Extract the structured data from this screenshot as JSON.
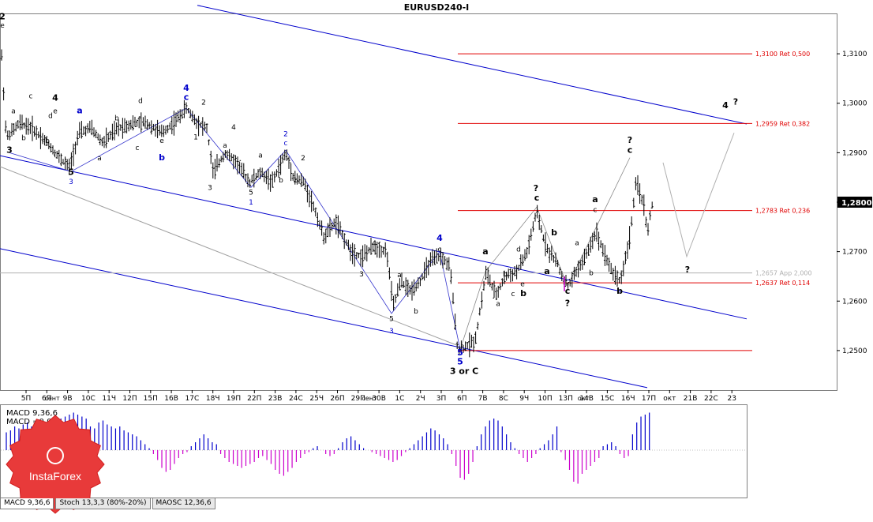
{
  "chart_data": {
    "type": "candlestick",
    "title": "EURUSD240-I",
    "instrument": "EURUSD",
    "ylim": [
      1.242,
      1.318
    ],
    "y_ticks": [
      "1,3100",
      "1,3000",
      "1,2900",
      "1,2800",
      "1,2700",
      "1,2600",
      "1,2500"
    ],
    "y_tick_values": [
      1.31,
      1.3,
      1.29,
      1.28,
      1.27,
      1.26,
      1.25
    ],
    "current_price_label": "1,2800",
    "current_price": 1.28,
    "x_ticks": [
      "5П",
      "6П",
      "9В",
      "10С",
      "11Ч",
      "12П",
      "15П",
      "16В",
      "17С",
      "18Ч",
      "19П",
      "22П",
      "23В",
      "24С",
      "25Ч",
      "26П",
      "29П",
      "30В",
      "1С",
      "2Ч",
      "3П",
      "6П",
      "7В",
      "8С",
      "9Ч",
      "10П",
      "13П",
      "14В",
      "15С",
      "16Ч",
      "17П",
      "окт",
      "21В",
      "22С",
      "23"
    ],
    "x_ticks_minor": [
      "сент",
      "окт",
      "окт"
    ],
    "price_path": [
      [
        0,
        1.315
      ],
      [
        8,
        1.293
      ],
      [
        25,
        1.296
      ],
      [
        40,
        1.295
      ],
      [
        60,
        1.292
      ],
      [
        75,
        1.289
      ],
      [
        88,
        1.287
      ],
      [
        100,
        1.294
      ],
      [
        115,
        1.295
      ],
      [
        130,
        1.292
      ],
      [
        150,
        1.295
      ],
      [
        170,
        1.296
      ],
      [
        185,
        1.296
      ],
      [
        205,
        1.294
      ],
      [
        220,
        1.296
      ],
      [
        236,
        1.299
      ],
      [
        250,
        1.296
      ],
      [
        262,
        1.295
      ],
      [
        270,
        1.286
      ],
      [
        285,
        1.29
      ],
      [
        300,
        1.288
      ],
      [
        316,
        1.284
      ],
      [
        330,
        1.286
      ],
      [
        345,
        1.284
      ],
      [
        362,
        1.29
      ],
      [
        372,
        1.285
      ],
      [
        385,
        1.284
      ],
      [
        400,
        1.278
      ],
      [
        410,
        1.273
      ],
      [
        425,
        1.276
      ],
      [
        445,
        1.27
      ],
      [
        458,
        1.269
      ],
      [
        474,
        1.271
      ],
      [
        490,
        1.27
      ],
      [
        498,
        1.259
      ],
      [
        508,
        1.264
      ],
      [
        520,
        1.262
      ],
      [
        532,
        1.264
      ],
      [
        545,
        1.268
      ],
      [
        558,
        1.269
      ],
      [
        570,
        1.267
      ],
      [
        580,
        1.25
      ],
      [
        592,
        1.251
      ],
      [
        602,
        1.252
      ],
      [
        616,
        1.266
      ],
      [
        628,
        1.261
      ],
      [
        640,
        1.265
      ],
      [
        655,
        1.266
      ],
      [
        668,
        1.27
      ],
      [
        680,
        1.278
      ],
      [
        688,
        1.273
      ],
      [
        695,
        1.27
      ],
      [
        705,
        1.268
      ],
      [
        712,
        1.265
      ],
      [
        720,
        1.263
      ],
      [
        730,
        1.266
      ],
      [
        742,
        1.269
      ],
      [
        755,
        1.274
      ],
      [
        765,
        1.27
      ],
      [
        775,
        1.266
      ],
      [
        786,
        1.264
      ],
      [
        797,
        1.272
      ],
      [
        806,
        1.284
      ],
      [
        815,
        1.28
      ],
      [
        820,
        1.274
      ],
      [
        827,
        1.28
      ]
    ],
    "channel_lines": [
      {
        "name": "upper-channel",
        "points": [
          [
            1.3198,
            250
          ],
          [
            1.2958,
            946
          ]
        ],
        "color": "#0000cc"
      },
      {
        "name": "mid-channel",
        "points": [
          [
            1.2894,
            0
          ],
          [
            1.2564,
            946
          ]
        ],
        "color": "#0000cc"
      },
      {
        "name": "lower-channel",
        "points": [
          [
            1.2706,
            0
          ],
          [
            1.2425,
            820
          ]
        ],
        "color": "#0000cc"
      },
      {
        "name": "gray-trend",
        "points": [
          [
            1.2872,
            0
          ],
          [
            1.251,
            580
          ]
        ],
        "color": "#a0a0a0"
      }
    ],
    "fib_levels": [
      {
        "value": 1.31,
        "label": "1,3100 Ret 0,500",
        "color": "#e00000",
        "x_start": 580
      },
      {
        "value": 1.2959,
        "label": "1,2959 Ret 0,382",
        "color": "#e00000",
        "x_start": 580
      },
      {
        "value": 1.2783,
        "label": "1,2783 Ret 0,236",
        "color": "#e00000",
        "x_start": 580
      },
      {
        "value": 1.2657,
        "label": "1,2657 App 2,000",
        "color": "#b0b0b0",
        "x_start": 0
      },
      {
        "value": 1.2637,
        "label": "1,2637 Ret 0,114",
        "color": "#e00000",
        "x_start": 580
      },
      {
        "value": 1.25,
        "label": "",
        "color": "#e00000",
        "x_start": 580
      }
    ],
    "forecast_path": [
      [
        840,
        1.288
      ],
      [
        870,
        1.269
      ],
      [
        930,
        1.294
      ]
    ],
    "wave_labels": [
      {
        "t": "2",
        "x": 3,
        "p": 1.317,
        "c": "#000",
        "b": true
      },
      {
        "t": "e",
        "x": 3,
        "p": 1.3153,
        "c": "#000"
      },
      {
        "t": "a",
        "x": 17,
        "p": 1.298,
        "c": "#000"
      },
      {
        "t": "c",
        "x": 39,
        "p": 1.301,
        "c": "#000"
      },
      {
        "t": "4",
        "x": 70,
        "p": 1.3005,
        "c": "#000",
        "b": true
      },
      {
        "t": "e",
        "x": 70,
        "p": 1.298,
        "c": "#000"
      },
      {
        "t": "d",
        "x": 64,
        "p": 1.297,
        "c": "#000"
      },
      {
        "t": "b",
        "x": 30,
        "p": 1.2925,
        "c": "#000"
      },
      {
        "t": "b",
        "x": 60,
        "p": 1.292,
        "c": "#000"
      },
      {
        "t": "3",
        "x": 12,
        "p": 1.29,
        "c": "#000",
        "b": true
      },
      {
        "t": "5",
        "x": 90,
        "p": 1.2855,
        "c": "#000",
        "b": true
      },
      {
        "t": "3",
        "x": 90,
        "p": 1.2837,
        "c": "#0000cc"
      },
      {
        "t": "a",
        "x": 101,
        "p": 1.298,
        "c": "#0000cc",
        "b": true
      },
      {
        "t": "b",
        "x": 148,
        "p": 1.2965,
        "c": "#000"
      },
      {
        "t": "a",
        "x": 126,
        "p": 1.2885,
        "c": "#000"
      },
      {
        "t": "c",
        "x": 174,
        "p": 1.2905,
        "c": "#000"
      },
      {
        "t": "d",
        "x": 178,
        "p": 1.3,
        "c": "#000"
      },
      {
        "t": "e",
        "x": 205,
        "p": 1.292,
        "c": "#000"
      },
      {
        "t": "b",
        "x": 205,
        "p": 1.2885,
        "c": "#0000cc",
        "b": true
      },
      {
        "t": "4",
        "x": 236,
        "p": 1.3025,
        "c": "#0000cc",
        "b": true
      },
      {
        "t": "c",
        "x": 236,
        "p": 1.3007,
        "c": "#0000cc",
        "b": true
      },
      {
        "t": "2",
        "x": 258,
        "p": 1.2997,
        "c": "#000"
      },
      {
        "t": "1",
        "x": 248,
        "p": 1.2927,
        "c": "#000"
      },
      {
        "t": "3",
        "x": 266,
        "p": 1.2825,
        "c": "#000"
      },
      {
        "t": "4",
        "x": 296,
        "p": 1.2947,
        "c": "#000"
      },
      {
        "t": "a",
        "x": 285,
        "p": 1.291,
        "c": "#000"
      },
      {
        "t": "5",
        "x": 318,
        "p": 1.2815,
        "c": "#000"
      },
      {
        "t": "1",
        "x": 318,
        "p": 1.2795,
        "c": "#0000cc"
      },
      {
        "t": "a",
        "x": 330,
        "p": 1.289,
        "c": "#000"
      },
      {
        "t": "b",
        "x": 356,
        "p": 1.284,
        "c": "#000"
      },
      {
        "t": "1",
        "x": 374,
        "p": 1.284,
        "c": "#000"
      },
      {
        "t": "2",
        "x": 362,
        "p": 1.2933,
        "c": "#0000cc"
      },
      {
        "t": "c",
        "x": 362,
        "p": 1.2915,
        "c": "#0000cc"
      },
      {
        "t": "2",
        "x": 384,
        "p": 1.2885,
        "c": "#000"
      },
      {
        "t": "4",
        "x": 474,
        "p": 1.2712,
        "c": "#000"
      },
      {
        "t": "3",
        "x": 458,
        "p": 1.265,
        "c": "#000"
      },
      {
        "t": "a",
        "x": 506,
        "p": 1.2648,
        "c": "#000"
      },
      {
        "t": "b",
        "x": 527,
        "p": 1.2575,
        "c": "#000"
      },
      {
        "t": "5",
        "x": 496,
        "p": 1.256,
        "c": "#000"
      },
      {
        "t": "3",
        "x": 496,
        "p": 1.2535,
        "c": "#0000cc"
      },
      {
        "t": "4",
        "x": 557,
        "p": 1.2722,
        "c": "#0000cc",
        "b": true
      },
      {
        "t": "c",
        "x": 557,
        "p": 1.27,
        "c": "#000"
      },
      {
        "t": "5",
        "x": 583,
        "p": 1.249,
        "c": "#0000cc",
        "b": true
      },
      {
        "t": "5",
        "x": 583,
        "p": 1.2472,
        "c": "#0000cc",
        "b": true
      },
      {
        "t": "3 or C",
        "x": 588,
        "p": 1.2453,
        "c": "#000",
        "b": true
      },
      {
        "t": "a",
        "x": 615,
        "p": 1.2695,
        "c": "#000",
        "b": true
      },
      {
        "t": "a",
        "x": 631,
        "p": 1.259,
        "c": "#000"
      },
      {
        "t": "b",
        "x": 640,
        "p": 1.265,
        "c": "#000"
      },
      {
        "t": "c",
        "x": 650,
        "p": 1.261,
        "c": "#000"
      },
      {
        "t": "d",
        "x": 657,
        "p": 1.27,
        "c": "#000"
      },
      {
        "t": "e",
        "x": 662,
        "p": 1.263,
        "c": "#000"
      },
      {
        "t": "b",
        "x": 663,
        "p": 1.261,
        "c": "#000",
        "b": true
      },
      {
        "t": "?",
        "x": 679,
        "p": 1.2822,
        "c": "#000",
        "b": true
      },
      {
        "t": "c",
        "x": 680,
        "p": 1.2803,
        "c": "#000",
        "b": true
      },
      {
        "t": "b",
        "x": 702,
        "p": 1.2733,
        "c": "#000",
        "b": true
      },
      {
        "t": "a",
        "x": 693,
        "p": 1.2655,
        "c": "#000",
        "b": true
      },
      {
        "t": "c",
        "x": 719,
        "p": 1.2615,
        "c": "#000",
        "b": true
      },
      {
        "t": "?",
        "x": 719,
        "p": 1.259,
        "c": "#000",
        "b": true
      },
      {
        "t": "a",
        "x": 731,
        "p": 1.2713,
        "c": "#000"
      },
      {
        "t": "b",
        "x": 749,
        "p": 1.2652,
        "c": "#000"
      },
      {
        "t": "a",
        "x": 754,
        "p": 1.28,
        "c": "#000",
        "b": true
      },
      {
        "t": "c",
        "x": 754,
        "p": 1.278,
        "c": "#000"
      },
      {
        "t": "b",
        "x": 785,
        "p": 1.2615,
        "c": "#000",
        "b": true
      },
      {
        "t": "?",
        "x": 798,
        "p": 1.292,
        "c": "#000",
        "b": true
      },
      {
        "t": "c",
        "x": 798,
        "p": 1.29,
        "c": "#000",
        "b": true
      },
      {
        "t": "?",
        "x": 871,
        "p": 1.2658,
        "c": "#000",
        "b": true
      },
      {
        "t": "4",
        "x": 919,
        "p": 1.299,
        "c": "#000",
        "b": true
      },
      {
        "t": "?",
        "x": 932,
        "p": 1.2997,
        "c": "#000",
        "b": true
      }
    ],
    "macd": {
      "label_line1": "MACD 9,36,6",
      "label_line2": "MACD =0,00",
      "ymax": 1.0,
      "values": [
        0.45,
        0.5,
        0.6,
        0.55,
        0.65,
        0.7,
        0.6,
        0.5,
        0.55,
        0.6,
        0.5,
        0.6,
        0.7,
        0.8,
        0.85,
        0.9,
        0.95,
        0.9,
        0.85,
        0.8,
        0.6,
        0.55,
        0.7,
        0.75,
        0.65,
        0.6,
        0.55,
        0.6,
        0.5,
        0.45,
        0.4,
        0.35,
        0.25,
        0.15,
        0.05,
        -0.1,
        -0.25,
        -0.45,
        -0.55,
        -0.5,
        -0.35,
        -0.2,
        -0.1,
        -0.05,
        0.1,
        0.2,
        0.3,
        0.4,
        0.3,
        0.2,
        0.15,
        -0.1,
        -0.2,
        -0.3,
        -0.35,
        -0.4,
        -0.45,
        -0.4,
        -0.35,
        -0.3,
        -0.2,
        -0.15,
        -0.25,
        -0.35,
        -0.5,
        -0.6,
        -0.65,
        -0.55,
        -0.45,
        -0.3,
        -0.2,
        -0.1,
        -0.05,
        0.05,
        0.1,
        0.0,
        -0.1,
        -0.15,
        -0.1,
        0.05,
        0.2,
        0.3,
        0.35,
        0.25,
        0.15,
        0.05,
        0.0,
        -0.05,
        -0.1,
        -0.15,
        -0.2,
        -0.25,
        -0.3,
        -0.25,
        -0.15,
        -0.05,
        0.05,
        0.15,
        0.25,
        0.35,
        0.45,
        0.55,
        0.5,
        0.4,
        0.3,
        0.15,
        -0.1,
        -0.4,
        -0.7,
        -0.75,
        -0.6,
        -0.3,
        0.1,
        0.4,
        0.6,
        0.75,
        0.8,
        0.75,
        0.6,
        0.4,
        0.2,
        0.05,
        -0.1,
        -0.2,
        -0.3,
        -0.2,
        -0.1,
        0.05,
        0.15,
        0.25,
        0.4,
        0.6,
        -0.05,
        -0.25,
        -0.5,
        -0.8,
        -0.85,
        -0.6,
        -0.5,
        -0.4,
        -0.3,
        -0.2,
        0.1,
        0.15,
        0.2,
        0.1,
        -0.1,
        -0.2,
        -0.15,
        0.4,
        0.7,
        0.85,
        0.9,
        0.95
      ]
    },
    "brand": "InstaForex",
    "indicator_tabs": [
      "MACD 9,36,6",
      "Stoch 13,3,3 (80%-20%)",
      "MAOSC 12,36,6"
    ]
  }
}
